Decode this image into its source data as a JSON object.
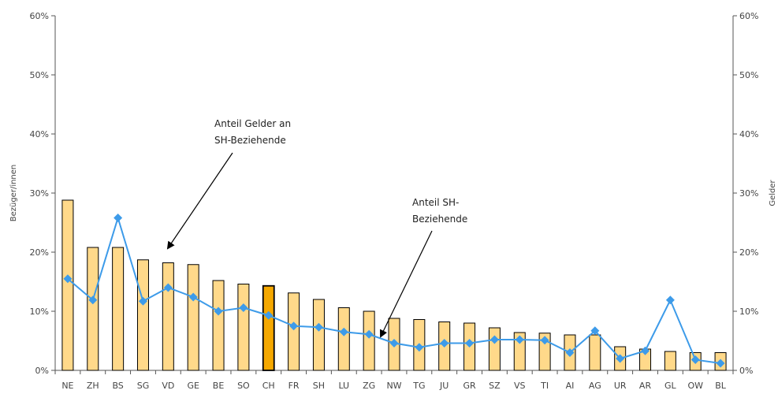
{
  "colors": {
    "bar": "#FFD98A",
    "bar_highlight": "#F5A800",
    "bar_stroke": "#000000",
    "line": "#3D9BE9",
    "axis": "#555555",
    "arrow": "#000000"
  },
  "chart_data": {
    "type": "bar",
    "categories": [
      "NE",
      "ZH",
      "BS",
      "SG",
      "VD",
      "GE",
      "BE",
      "SO",
      "CH",
      "FR",
      "SH",
      "LU",
      "ZG",
      "NW",
      "TG",
      "JU",
      "GR",
      "SZ",
      "VS",
      "TI",
      "AI",
      "AG",
      "UR",
      "AR",
      "GL",
      "OW",
      "BL"
    ],
    "highlight_category": "CH",
    "series": [
      {
        "name": "Anteil Gelder an SH-Beziehende",
        "type": "bar",
        "axis": "left",
        "values": [
          28.8,
          20.8,
          20.8,
          18.7,
          18.2,
          17.9,
          15.2,
          14.6,
          14.3,
          13.1,
          12.0,
          10.6,
          10.0,
          8.8,
          8.6,
          8.2,
          8.0,
          7.2,
          6.4,
          6.3,
          6.0,
          6.0,
          4.0,
          3.6,
          3.2,
          3.0,
          3.0
        ]
      },
      {
        "name": "Anteil SH-Beziehende",
        "type": "line",
        "axis": "left",
        "values": [
          15.5,
          11.9,
          25.8,
          11.7,
          14.0,
          12.4,
          10.0,
          10.6,
          9.3,
          7.5,
          7.3,
          6.5,
          6.1,
          4.6,
          3.9,
          4.6,
          4.6,
          5.2,
          5.2,
          5.1,
          3.0,
          6.7,
          2.0,
          3.3,
          11.9,
          1.8,
          1.2
        ]
      }
    ],
    "y_left": {
      "label": "Bezüger/innen",
      "ylim": [
        0,
        60
      ],
      "ticks": [
        "0%",
        "10%",
        "20%",
        "30%",
        "40%",
        "50%",
        "60%"
      ]
    },
    "y_right": {
      "label": "Gelder",
      "ylim": [
        0,
        60
      ],
      "ticks": [
        "0%",
        "10%",
        "20%",
        "30%",
        "40%",
        "50%",
        "60%"
      ]
    },
    "annotations": [
      {
        "lines": [
          "Anteil Gelder an",
          "SH-Beziehende"
        ]
      },
      {
        "lines": [
          "Anteil SH-",
          "Beziehende"
        ]
      }
    ],
    "grid": false
  }
}
